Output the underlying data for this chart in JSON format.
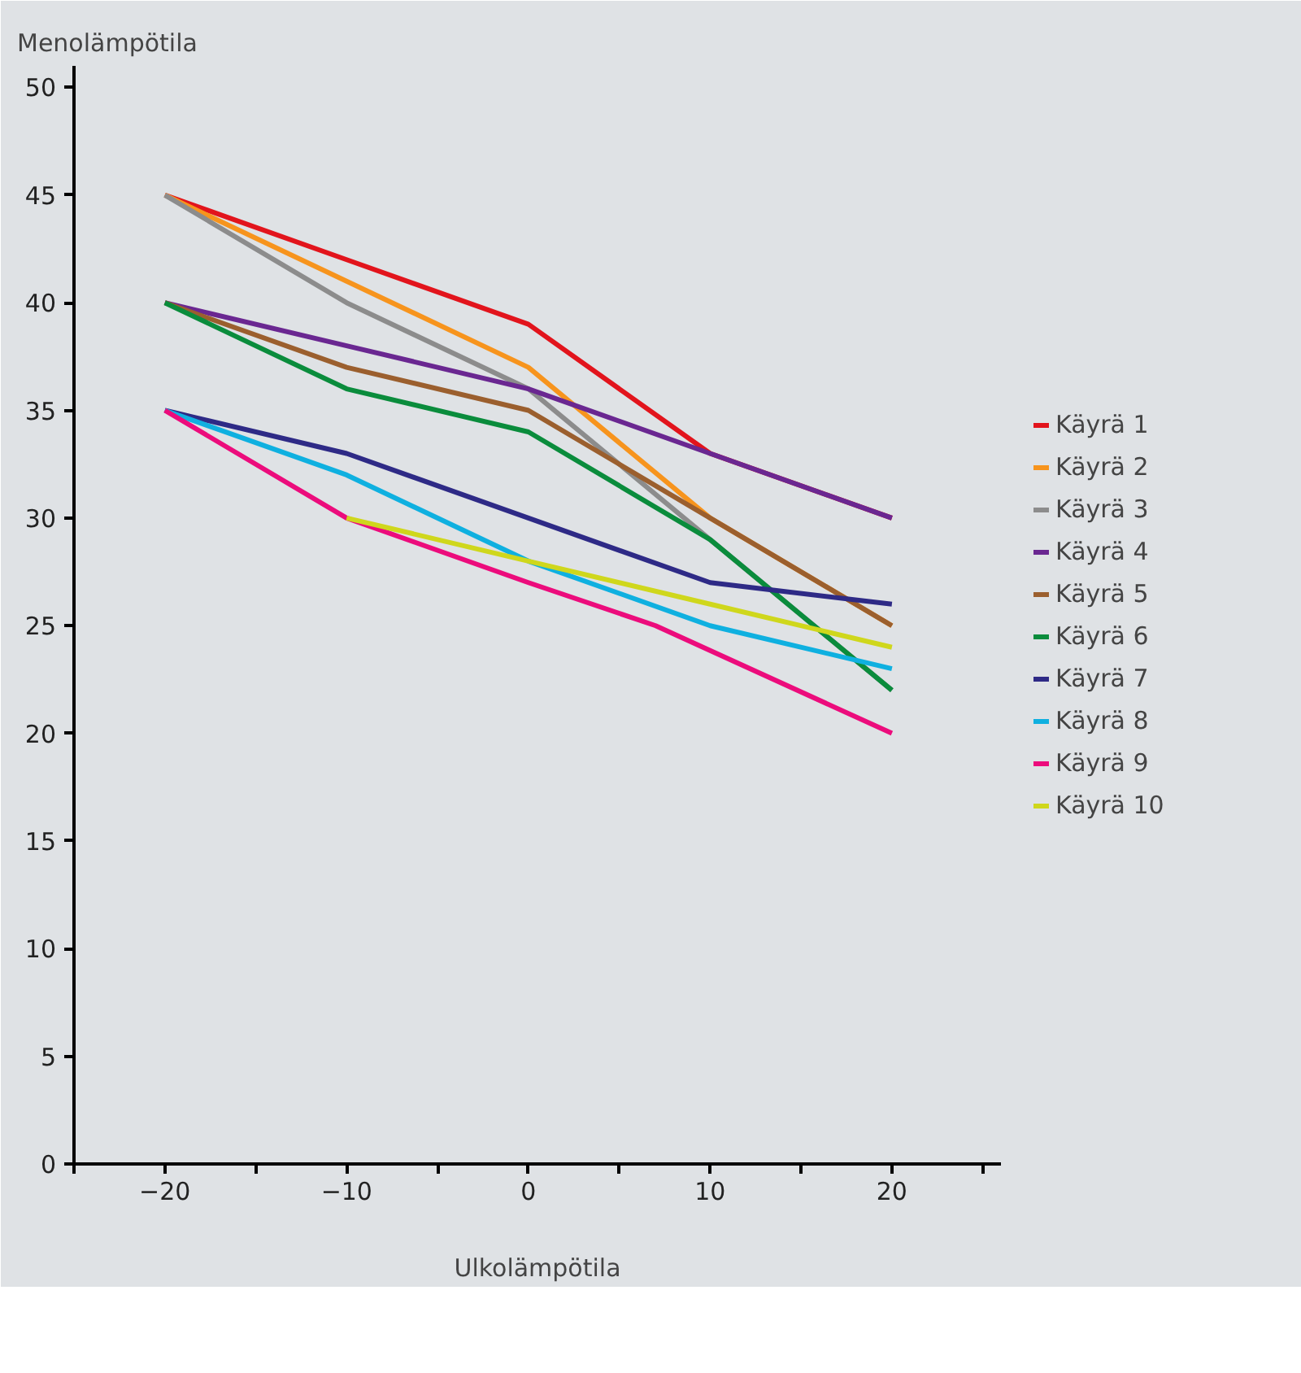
{
  "chart_data": {
    "type": "line",
    "xlabel": "Ulkolämpötila",
    "ylabel": "Menolämpötila",
    "x": [
      -20,
      -10,
      0,
      10,
      20
    ],
    "xlim": [
      -25,
      26
    ],
    "ylim": [
      0,
      51
    ],
    "xticks": [
      {
        "value": -25,
        "label": null
      },
      -20,
      {
        "value": -15,
        "label": null
      },
      -10,
      {
        "value": -5,
        "label": null
      },
      0,
      {
        "value": 5,
        "label": null
      },
      10,
      {
        "value": 15,
        "label": null
      },
      20,
      {
        "value": 25,
        "label": null
      }
    ],
    "yticks": [
      0,
      5,
      10,
      15,
      20,
      25,
      30,
      35,
      40,
      45,
      50
    ],
    "grid": false,
    "legend": "right",
    "series": [
      {
        "name": "Käyrä 1",
        "color": "#e2141c",
        "values": [
          45,
          42,
          39,
          33,
          30
        ]
      },
      {
        "name": "Käyrä 2",
        "color": "#f7941d",
        "values": [
          45,
          41,
          37,
          30,
          25
        ]
      },
      {
        "name": "Käyrä 3",
        "color": "#8c8c8c",
        "values": [
          45,
          40,
          36,
          29,
          22
        ]
      },
      {
        "name": "Käyrä 4",
        "color": "#6a2791",
        "values": [
          40,
          38,
          36,
          33,
          30
        ]
      },
      {
        "name": "Käyrä 5",
        "color": "#9b5f2e",
        "values": [
          40,
          37,
          35,
          30,
          25
        ]
      },
      {
        "name": "Käyrä 6",
        "color": "#0a8c3c",
        "values": [
          40,
          36,
          34,
          29,
          22
        ]
      },
      {
        "name": "Käyrä 7",
        "color": "#2e2a86",
        "values": [
          35,
          33,
          30,
          27,
          26
        ]
      },
      {
        "name": "Käyrä 8",
        "color": "#0fb0e0",
        "values": [
          35,
          32,
          28,
          25,
          23
        ]
      },
      {
        "name": "Käyrä 9",
        "color": "#ec0c7c",
        "x": [
          -20,
          -10,
          0,
          7,
          20
        ],
        "values": [
          35,
          30,
          27,
          25,
          20
        ]
      },
      {
        "name": "Käyrä 10",
        "color": "#cfd71c",
        "values": [
          null,
          30,
          28,
          26,
          24
        ]
      }
    ]
  }
}
